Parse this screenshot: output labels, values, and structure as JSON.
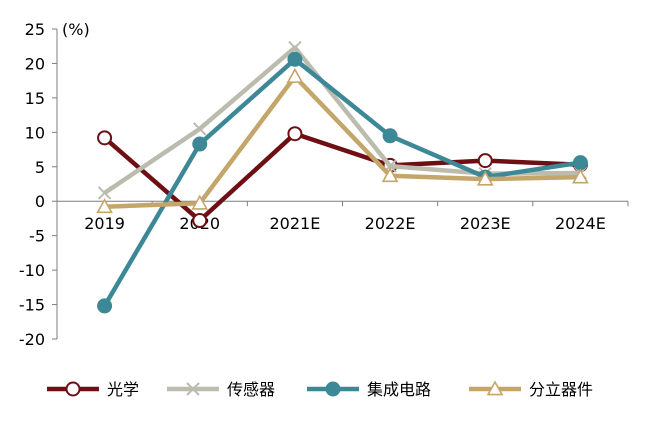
{
  "chart_data": {
    "type": "line",
    "title": "",
    "xlabel": "",
    "ylabel": "(%)",
    "ylim": [
      -20,
      25
    ],
    "yticks": [
      25,
      20,
      15,
      10,
      5,
      0,
      -5,
      -10,
      -15,
      -20
    ],
    "categories": [
      "2019",
      "2020",
      "2021E",
      "2022E",
      "2023E",
      "2024E"
    ],
    "grid": false,
    "legend_position": "bottom",
    "series": [
      {
        "name": "光学",
        "values": [
          9.2,
          -2.8,
          9.8,
          5.2,
          5.9,
          5.3
        ],
        "color": "#6e0f14",
        "marker": "circle-open"
      },
      {
        "name": "传感器",
        "values": [
          1.2,
          10.5,
          22.3,
          5.1,
          4.0,
          4.1
        ],
        "color": "#bcbcae",
        "marker": "cross"
      },
      {
        "name": "集成电路",
        "values": [
          -15.2,
          8.3,
          20.6,
          9.5,
          3.5,
          5.6
        ],
        "color": "#3d8897",
        "marker": "circle-filled"
      },
      {
        "name": "分立器件",
        "values": [
          -0.8,
          -0.3,
          18.1,
          3.7,
          3.2,
          3.5
        ],
        "color": "#c4a56a",
        "marker": "triangle-open"
      }
    ]
  }
}
